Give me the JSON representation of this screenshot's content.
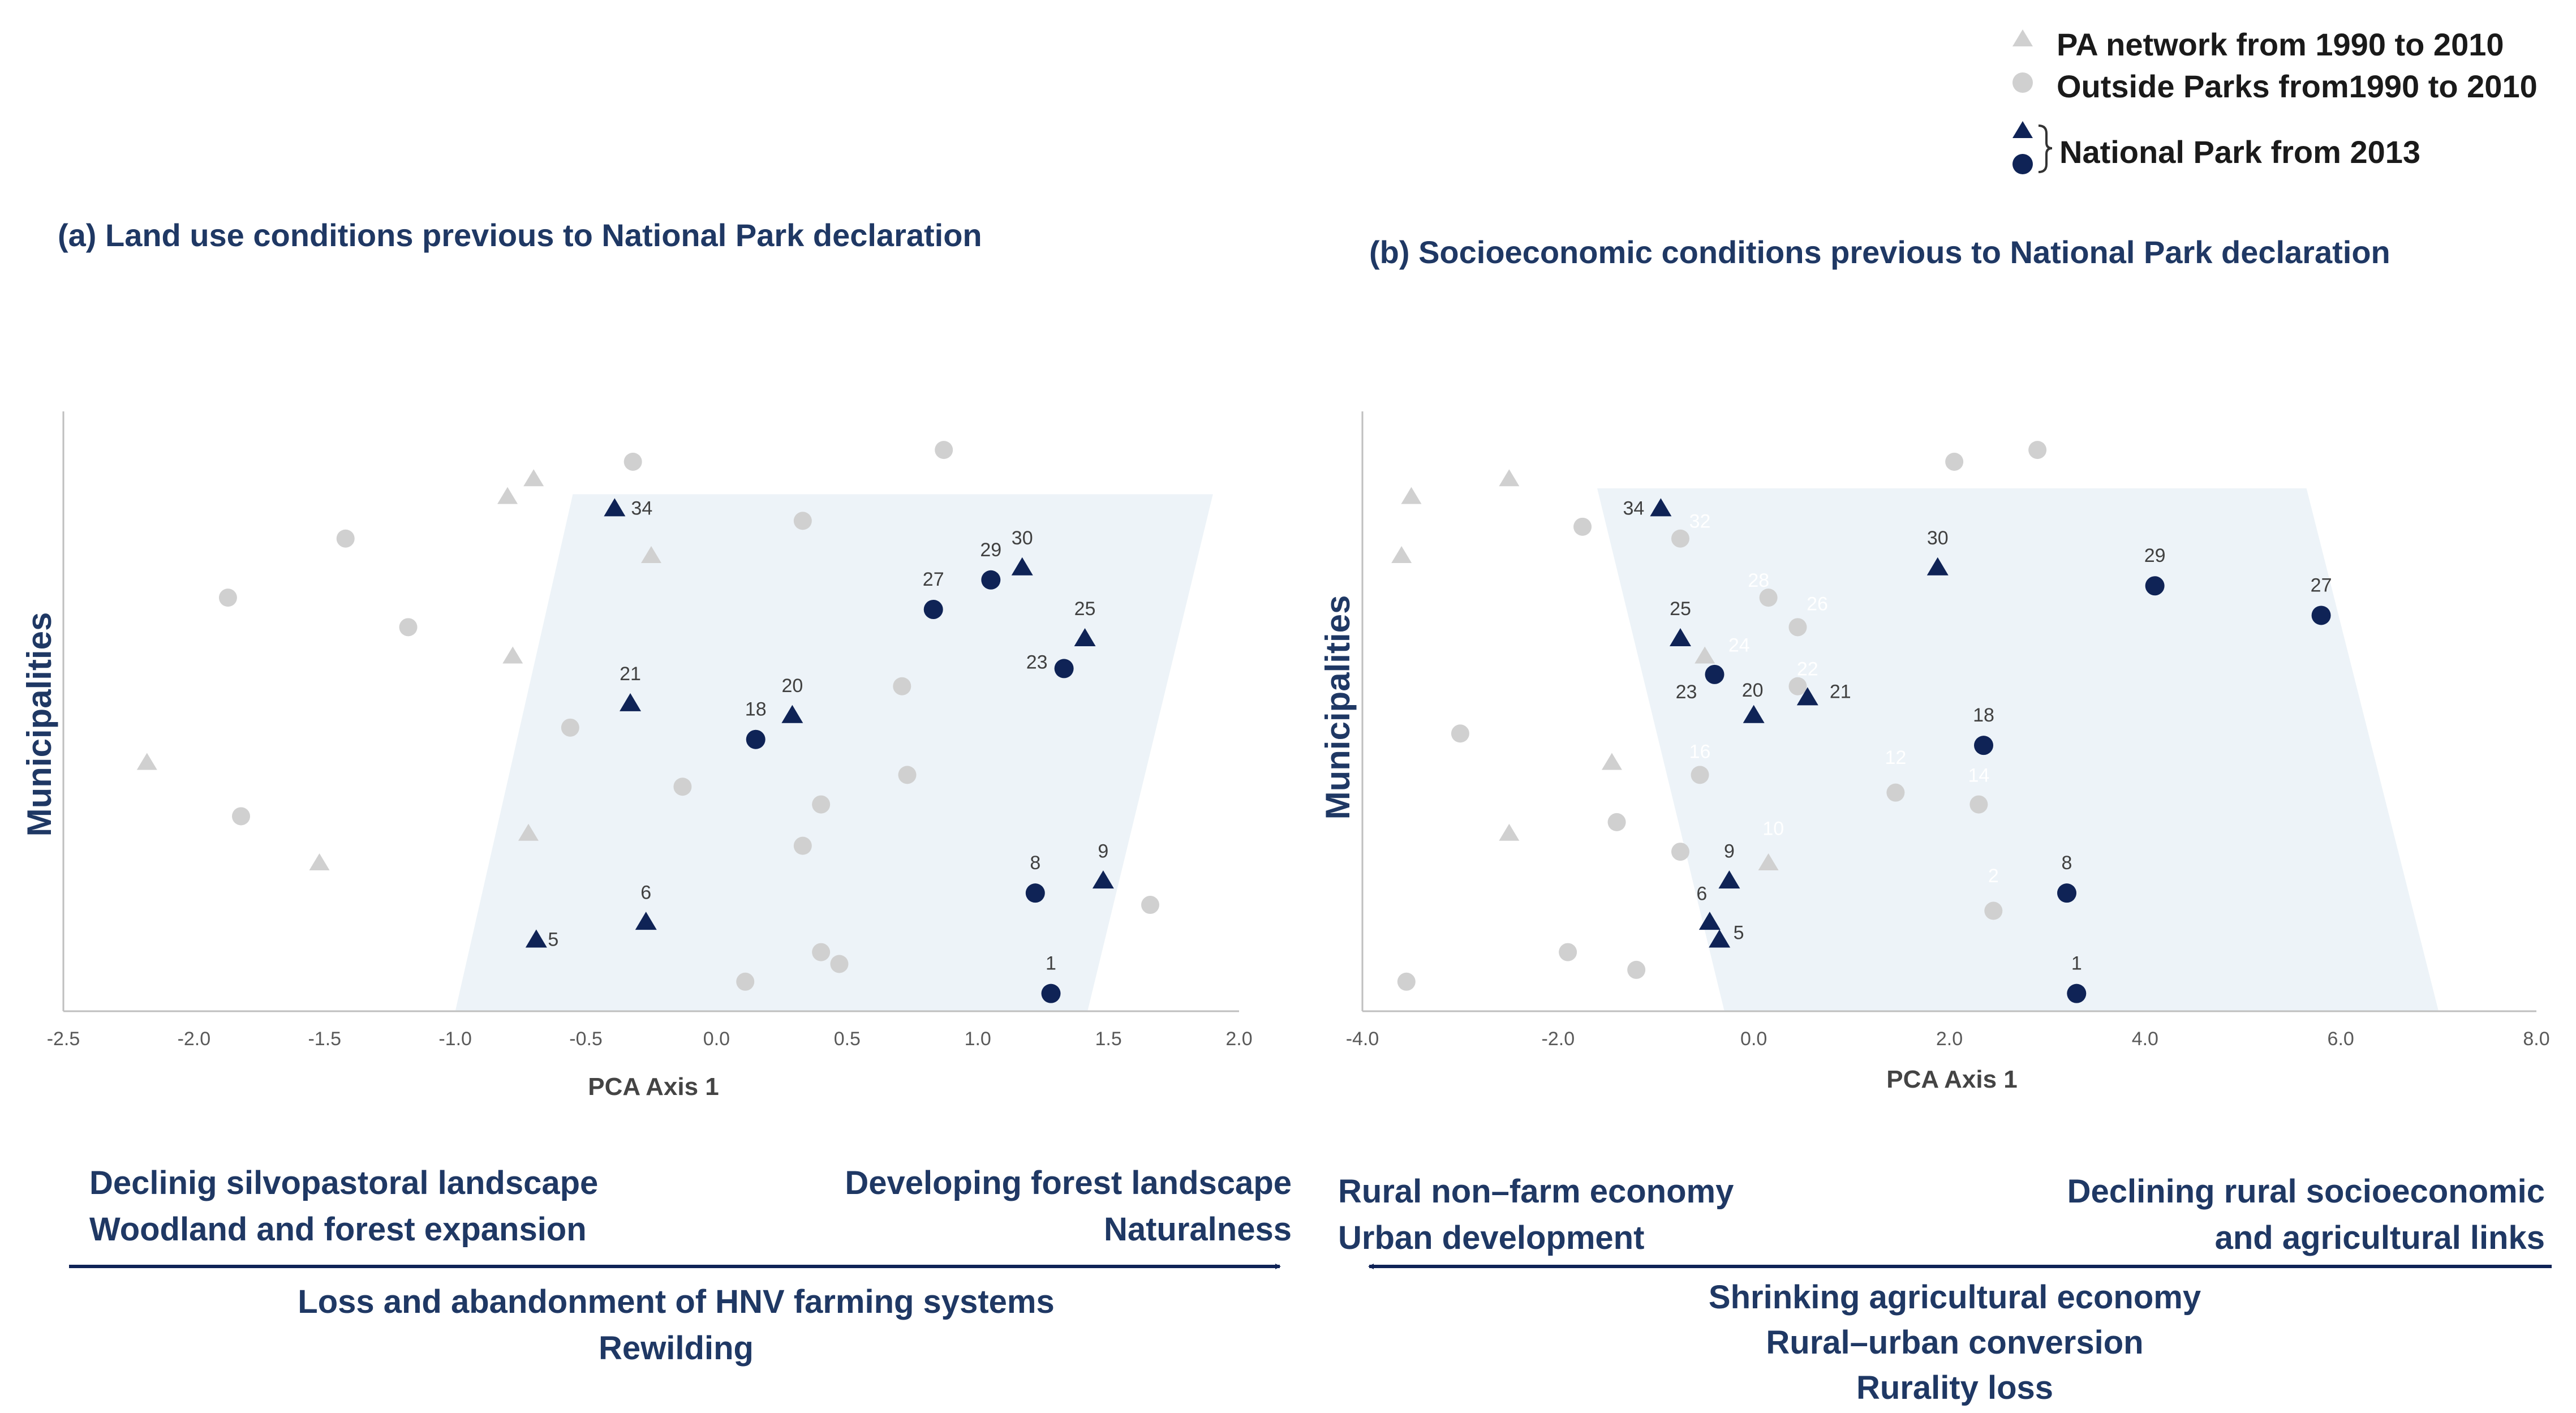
{
  "legend": {
    "pa_network": "PA network from 1990 to 2010",
    "outside_parks": "Outside Parks from1990 to 2010",
    "national_park": "National Park from 2013",
    "colors": {
      "gray": "#d0d0d0",
      "navy": "#0f2356",
      "region": "#edf3f8"
    }
  },
  "chart_data": [
    {
      "id": "a",
      "type": "scatter",
      "title": "(a) Land use conditions previous to National Park declaration",
      "xlabel": "PCA Axis 1",
      "ylabel": "Municipalities",
      "xlim": [
        -2.5,
        2.0
      ],
      "ylim": [
        0,
        100
      ],
      "xticks": [
        "-2.5",
        "-2.0",
        "-1.5",
        "-1.0",
        "-0.5",
        "0.0",
        "0.5",
        "1.0",
        "1.5",
        "2.0"
      ],
      "region": [
        [
          -1.0,
          0
        ],
        [
          -0.55,
          87.5
        ],
        [
          1.9,
          87.5
        ],
        [
          1.42,
          0
        ]
      ],
      "series": [
        {
          "name": "PA network from 1990 to 2010",
          "marker": "triangle",
          "color": "#d0d0d0",
          "points": [
            {
              "x": -0.8,
              "y": 87
            },
            {
              "x": -0.7,
              "y": 90
            },
            {
              "x": -0.25,
              "y": 77
            },
            {
              "x": -0.78,
              "y": 60
            },
            {
              "x": -2.18,
              "y": 42
            },
            {
              "x": -1.52,
              "y": 25
            },
            {
              "x": -0.72,
              "y": 30
            }
          ]
        },
        {
          "name": "Outside Parks from1990 to 2010",
          "marker": "circle",
          "color": "#d0d0d0",
          "points": [
            {
              "x": -0.32,
              "y": 93
            },
            {
              "x": 0.87,
              "y": 95
            },
            {
              "x": -1.42,
              "y": 80
            },
            {
              "x": 0.33,
              "y": 83
            },
            {
              "x": -1.87,
              "y": 70
            },
            {
              "x": -1.18,
              "y": 65
            },
            {
              "x": 0.71,
              "y": 55
            },
            {
              "x": -0.56,
              "y": 48
            },
            {
              "x": -0.13,
              "y": 38
            },
            {
              "x": 0.73,
              "y": 40
            },
            {
              "x": 0.4,
              "y": 35
            },
            {
              "x": -1.82,
              "y": 33
            },
            {
              "x": 0.33,
              "y": 28
            },
            {
              "x": 1.66,
              "y": 18
            },
            {
              "x": 0.4,
              "y": 10
            },
            {
              "x": 0.47,
              "y": 8
            },
            {
              "x": 0.11,
              "y": 5
            }
          ]
        },
        {
          "name": "National Park from 2013 (triangle)",
          "marker": "triangle",
          "color": "#0f2356",
          "points": [
            {
              "x": -0.39,
              "y": 85,
              "label": "34"
            },
            {
              "x": 1.17,
              "y": 75,
              "label": "30"
            },
            {
              "x": 1.41,
              "y": 63,
              "label": "25"
            },
            {
              "x": -0.33,
              "y": 52,
              "label": "21"
            },
            {
              "x": 0.29,
              "y": 50,
              "label": "20"
            },
            {
              "x": 1.48,
              "y": 22,
              "label": "9"
            },
            {
              "x": -0.27,
              "y": 15,
              "label": "6"
            },
            {
              "x": -0.69,
              "y": 12,
              "label": "5"
            }
          ]
        },
        {
          "name": "National Park from 2013 (circle)",
          "marker": "circle",
          "color": "#0f2356",
          "points": [
            {
              "x": 1.05,
              "y": 73,
              "label": "29"
            },
            {
              "x": 0.83,
              "y": 68,
              "label": "27"
            },
            {
              "x": 1.33,
              "y": 58,
              "label": "23"
            },
            {
              "x": 0.15,
              "y": 46,
              "label": "18"
            },
            {
              "x": 1.22,
              "y": 20,
              "label": "8"
            },
            {
              "x": 1.28,
              "y": 3,
              "label": "1"
            }
          ]
        }
      ]
    },
    {
      "id": "b",
      "type": "scatter",
      "title": "(b) Socioeconomic conditions previous to National Park declaration",
      "xlabel": "PCA Axis 1",
      "ylabel": "Municipalities",
      "xlim": [
        -4.0,
        8.0
      ],
      "ylim": [
        0,
        100
      ],
      "xticks": [
        "-4.0",
        "-2.0",
        "0.0",
        "2.0",
        "4.0",
        "6.0",
        "8.0"
      ],
      "region": [
        [
          -0.3,
          0
        ],
        [
          -1.6,
          88.5
        ],
        [
          5.65,
          88.5
        ],
        [
          7.0,
          0
        ]
      ],
      "series": [
        {
          "name": "PA network from 1990 to 2010",
          "marker": "triangle",
          "color": "#d0d0d0",
          "points": [
            {
              "x": -3.5,
              "y": 87
            },
            {
              "x": -2.5,
              "y": 90
            },
            {
              "x": -3.6,
              "y": 77
            },
            {
              "x": -1.45,
              "y": 42
            },
            {
              "x": -2.5,
              "y": 30
            },
            {
              "x": 0.15,
              "y": 25
            },
            {
              "x": -0.5,
              "y": 60
            }
          ]
        },
        {
          "name": "Outside Parks from1990 to 2010",
          "marker": "circle",
          "color": "#d0d0d0",
          "points": [
            {
              "x": 2.05,
              "y": 93
            },
            {
              "x": 2.9,
              "y": 95
            },
            {
              "x": -1.75,
              "y": 82
            },
            {
              "x": -0.75,
              "y": 80
            },
            {
              "x": 0.15,
              "y": 70
            },
            {
              "x": 0.45,
              "y": 65
            },
            {
              "x": 0.45,
              "y": 55
            },
            {
              "x": -3.0,
              "y": 47
            },
            {
              "x": -0.55,
              "y": 40
            },
            {
              "x": 1.45,
              "y": 37
            },
            {
              "x": 2.3,
              "y": 35
            },
            {
              "x": -1.4,
              "y": 32
            },
            {
              "x": -0.75,
              "y": 27
            },
            {
              "x": 2.45,
              "y": 17
            },
            {
              "x": -1.9,
              "y": 10
            },
            {
              "x": -1.2,
              "y": 7
            },
            {
              "x": -3.55,
              "y": 5
            }
          ]
        },
        {
          "name": "National Park from 2013 (triangle)",
          "marker": "triangle",
          "color": "#0f2356",
          "points": [
            {
              "x": -0.95,
              "y": 85,
              "label": "34"
            },
            {
              "x": 1.88,
              "y": 75,
              "label": "30"
            },
            {
              "x": -0.75,
              "y": 63,
              "label": "25"
            },
            {
              "x": 0.55,
              "y": 53,
              "label": "21"
            },
            {
              "x": 0.0,
              "y": 50,
              "label": "20"
            },
            {
              "x": -0.25,
              "y": 22,
              "label": "9"
            },
            {
              "x": -0.45,
              "y": 15,
              "label": "6"
            },
            {
              "x": -0.35,
              "y": 12,
              "label": "5"
            }
          ]
        },
        {
          "name": "National Park from 2013 (circle)",
          "marker": "circle",
          "color": "#0f2356",
          "points": [
            {
              "x": 4.1,
              "y": 72,
              "label": "29"
            },
            {
              "x": 5.8,
              "y": 67,
              "label": "27"
            },
            {
              "x": -0.4,
              "y": 57,
              "label": "23"
            },
            {
              "x": 2.35,
              "y": 45,
              "label": "18"
            },
            {
              "x": 3.2,
              "y": 20,
              "label": "8"
            },
            {
              "x": 3.3,
              "y": 3,
              "label": "1"
            }
          ]
        }
      ],
      "faint_labels": [
        {
          "x": -0.55,
          "y": 83,
          "label": "32"
        },
        {
          "x": 0.05,
          "y": 73,
          "label": "28"
        },
        {
          "x": 0.65,
          "y": 69,
          "label": "26"
        },
        {
          "x": -0.15,
          "y": 62,
          "label": "24"
        },
        {
          "x": 0.55,
          "y": 58,
          "label": "22"
        },
        {
          "x": -0.55,
          "y": 44,
          "label": "16"
        },
        {
          "x": 1.45,
          "y": 43,
          "label": "12"
        },
        {
          "x": 2.3,
          "y": 40,
          "label": "14"
        },
        {
          "x": 0.2,
          "y": 31,
          "label": "10"
        },
        {
          "x": 2.45,
          "y": 23,
          "label": "2"
        }
      ]
    }
  ],
  "bottom_a": {
    "left_line1": "Declinig silvopastoral landscape",
    "left_line2": "Woodland and forest expansion",
    "right_line1": "Developing forest landscape",
    "right_line2": "Naturalness",
    "center_line1": "Loss and abandonment of HNV farming systems",
    "center_line2": "Rewilding"
  },
  "bottom_b": {
    "left_line1": "Rural non–farm economy",
    "left_line2": "Urban development",
    "right_line1": "Declining rural socioeconomic",
    "right_line2": "and agricultural  links",
    "center_line1": "Shrinking agricultural economy",
    "center_line2": "Rural–urban conversion",
    "center_line3": "Rurality loss"
  }
}
